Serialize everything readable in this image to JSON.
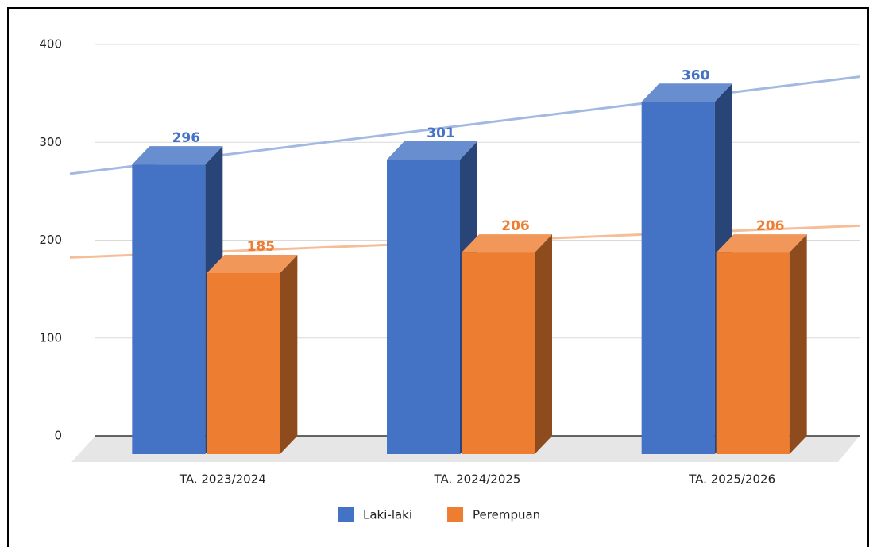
{
  "chart_data": {
    "type": "bar3d",
    "categories": [
      "TA. 2023/2024",
      "TA. 2024/2025",
      "TA. 2025/2026"
    ],
    "series": [
      {
        "name": "Laki-laki",
        "color": "#4472c4",
        "values": [
          296,
          301,
          360
        ]
      },
      {
        "name": "Perempuan",
        "color": "#ed7d31",
        "values": [
          185,
          206,
          206
        ]
      }
    ],
    "ylim": [
      0,
      400
    ],
    "yticks": [
      0,
      100,
      200,
      300,
      400
    ],
    "grid": true,
    "trendline": true,
    "legend": "bottom"
  }
}
